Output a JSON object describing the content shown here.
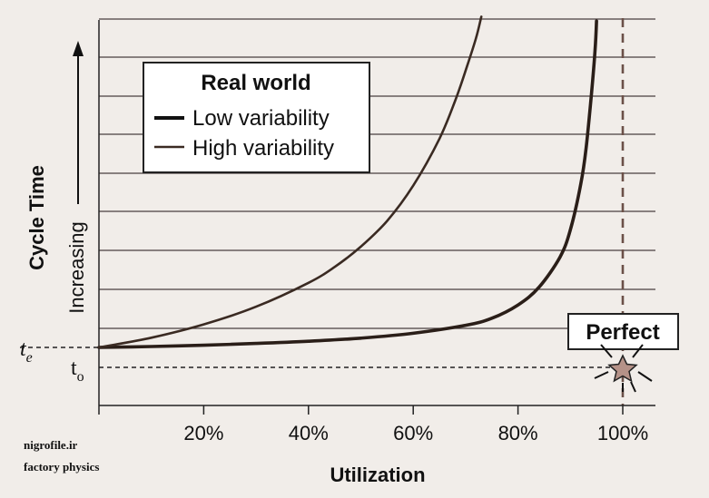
{
  "chart_data": {
    "type": "line",
    "xlabel": "Utilization",
    "ylabel": "Cycle Time",
    "ylabel_sub": "Increasing",
    "x_ticks": [
      "20%",
      "40%",
      "60%",
      "80%",
      "100%"
    ],
    "x_tick_values": [
      20,
      40,
      60,
      80,
      100
    ],
    "xlim": [
      0,
      105
    ],
    "grid": "horizontal",
    "legend": {
      "title": "Real world",
      "placement": "top-left",
      "items": [
        "Low variability",
        "High variability"
      ]
    },
    "series": [
      {
        "name": "Low variability",
        "x": [
          0,
          10,
          20,
          30,
          40,
          50,
          60,
          70,
          75,
          80,
          84,
          88,
          90,
          92,
          93,
          94,
          94.7,
          95
        ],
        "y": [
          0,
          0.1,
          0.25,
          0.45,
          0.7,
          1.05,
          1.6,
          2.5,
          3.3,
          4.8,
          6.8,
          10.2,
          13.3,
          18.5,
          22.5,
          28.5,
          33.5,
          36.9
        ]
      },
      {
        "name": "High variability",
        "x": [
          0,
          10,
          20,
          30,
          40,
          45,
          50,
          55,
          60,
          65,
          68,
          70,
          72,
          73
        ],
        "y": [
          0,
          1.1,
          2.6,
          4.6,
          7.3,
          9.1,
          11.4,
          14.3,
          18.3,
          23.6,
          27.9,
          31.3,
          35.0,
          37.4
        ]
      }
    ],
    "reference_lines": {
      "t_e": {
        "label": "t",
        "subscript": "e"
      },
      "t_o": {
        "label": "t",
        "subscript": "o"
      },
      "x_100": 100
    },
    "annotation": {
      "text": "Perfect",
      "x": 100
    }
  },
  "watermark": {
    "line1": "nigrofile.ir",
    "line2": "factory physics"
  },
  "colors": {
    "background": "#f1ede9",
    "line": "#3a2a22",
    "grid": "#4a4040",
    "dashed_100": "#6b5048",
    "star_fill": "#b59288"
  }
}
